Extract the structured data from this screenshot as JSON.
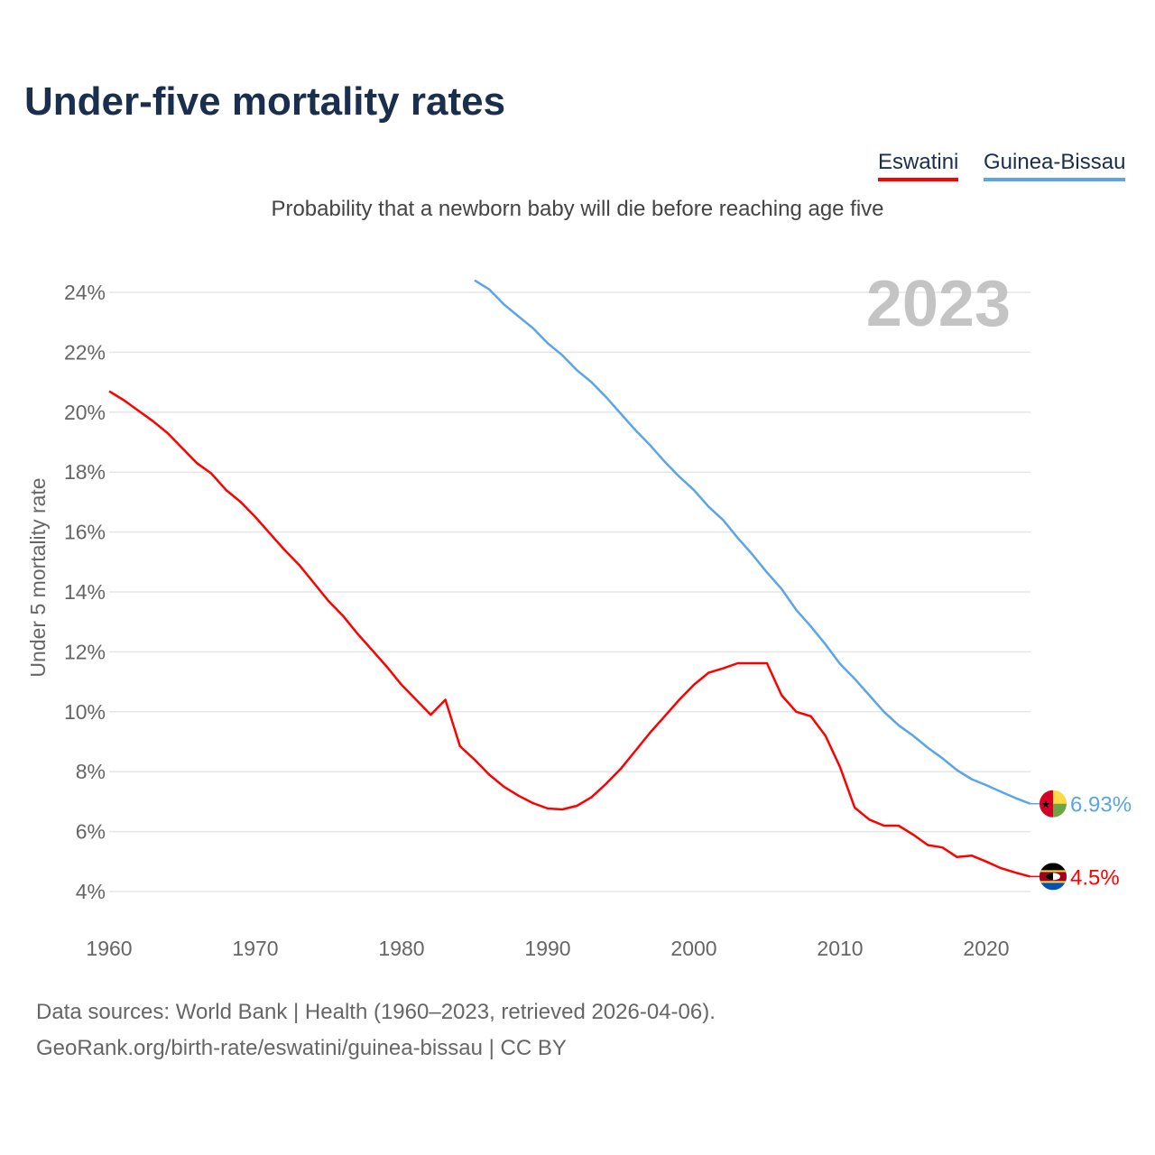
{
  "title": "Under-five mortality rates",
  "subtitle": "Probability that a newborn baby will die before reaching age five",
  "source_line1": "Data sources: World Bank | Health (1960–2023, retrieved 2026-04-06).",
  "source_line2": "GeoRank.org/birth-rate/eswatini/guinea-bissau | CC BY",
  "chart_data": {
    "type": "line",
    "title": "Under-five mortality rates",
    "ylabel": "Under 5 mortality rate",
    "xlabel": "",
    "year_label": "2023",
    "xlim": [
      1960,
      2023
    ],
    "ylim": [
      3,
      25
    ],
    "x_ticks": [
      1960,
      1970,
      1980,
      1990,
      2000,
      2010,
      2020
    ],
    "y_ticks": [
      4,
      6,
      8,
      10,
      12,
      14,
      16,
      18,
      20,
      22,
      24
    ],
    "y_tick_labels": [
      "4%",
      "6%",
      "8%",
      "10%",
      "12%",
      "14%",
      "16%",
      "18%",
      "20%",
      "22%",
      "24%"
    ],
    "grid": true,
    "legend_position": "top-right",
    "series": [
      {
        "name": "Eswatini",
        "color": "#ff0000",
        "end_label": "4.5%",
        "flag": "eswatini-flag",
        "start_year": 1960,
        "values": [
          20.7,
          20.4,
          20.05,
          19.7,
          19.3,
          18.8,
          18.3,
          17.95,
          17.4,
          17.0,
          16.5,
          15.95,
          15.4,
          14.9,
          14.3,
          13.7,
          13.2,
          12.6,
          12.05,
          11.5,
          10.9,
          10.4,
          9.9,
          10.4,
          8.85,
          8.4,
          7.9,
          7.5,
          7.2,
          6.95,
          6.77,
          6.74,
          6.86,
          7.15,
          7.6,
          8.1,
          8.7,
          9.3,
          9.85,
          10.4,
          10.9,
          11.3,
          11.45,
          11.62,
          11.62,
          11.62,
          10.55,
          10.0,
          9.85,
          9.2,
          8.15,
          6.8,
          6.4,
          6.2,
          6.2,
          5.9,
          5.55,
          5.47,
          5.15,
          5.2,
          5.0,
          4.78,
          4.63,
          4.5
        ]
      },
      {
        "name": "Guinea-Bissau",
        "color": "#5aa5e8",
        "end_label": "6.93%",
        "flag": "guinea-bissau-flag",
        "start_year": 1985,
        "values": [
          24.4,
          24.1,
          23.6,
          23.2,
          22.8,
          22.3,
          21.9,
          21.4,
          21.0,
          20.5,
          19.95,
          19.4,
          18.9,
          18.35,
          17.85,
          17.4,
          16.85,
          16.4,
          15.8,
          15.25,
          14.65,
          14.1,
          13.4,
          12.85,
          12.25,
          11.6,
          11.1,
          10.55,
          10.0,
          9.55,
          9.2,
          8.8,
          8.45,
          8.05,
          7.75,
          7.55,
          7.33,
          7.12,
          6.93
        ]
      }
    ]
  }
}
